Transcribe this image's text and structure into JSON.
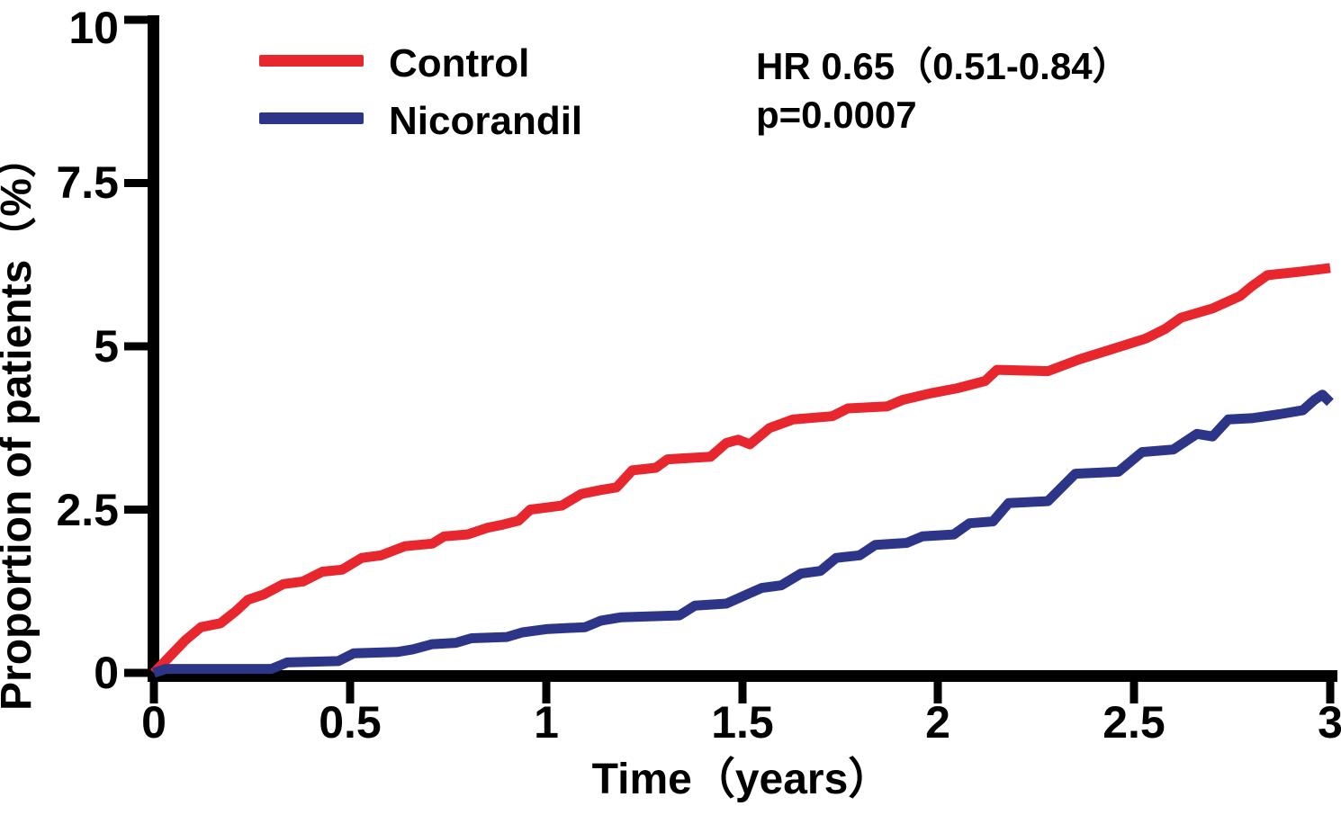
{
  "chart_data": {
    "type": "line",
    "subtype": "kaplan-meier-cumulative-incidence",
    "title": "",
    "xlabel": "Time（years）",
    "ylabel": "Proportion of patients（%）",
    "xlim": [
      0,
      3
    ],
    "ylim": [
      0,
      10
    ],
    "x_tick_labels": [
      "0",
      "0.5",
      "1",
      "1.5",
      "2",
      "2.5",
      "3"
    ],
    "y_tick_labels": [
      "0",
      "2.5",
      "5",
      "7.5",
      "10"
    ],
    "grid": false,
    "legend_position": "top-left-inside",
    "annotations": {
      "hazard_ratio": "HR 0.65（0.51-0.84）",
      "p_value": "p=0.0007"
    },
    "series": [
      {
        "name": "Control",
        "color": "#e7272d",
        "points": [
          [
            0.0,
            0.0
          ],
          [
            0.04,
            0.25
          ],
          [
            0.08,
            0.5
          ],
          [
            0.12,
            0.7
          ],
          [
            0.17,
            0.76
          ],
          [
            0.21,
            0.95
          ],
          [
            0.24,
            1.12
          ],
          [
            0.28,
            1.2
          ],
          [
            0.33,
            1.36
          ],
          [
            0.38,
            1.4
          ],
          [
            0.43,
            1.55
          ],
          [
            0.48,
            1.58
          ],
          [
            0.53,
            1.76
          ],
          [
            0.58,
            1.8
          ],
          [
            0.64,
            1.94
          ],
          [
            0.71,
            1.98
          ],
          [
            0.74,
            2.09
          ],
          [
            0.8,
            2.12
          ],
          [
            0.85,
            2.22
          ],
          [
            0.89,
            2.27
          ],
          [
            0.93,
            2.33
          ],
          [
            0.96,
            2.5
          ],
          [
            1.04,
            2.56
          ],
          [
            1.09,
            2.74
          ],
          [
            1.14,
            2.8
          ],
          [
            1.18,
            2.84
          ],
          [
            1.22,
            3.1
          ],
          [
            1.28,
            3.14
          ],
          [
            1.31,
            3.27
          ],
          [
            1.42,
            3.31
          ],
          [
            1.46,
            3.52
          ],
          [
            1.49,
            3.57
          ],
          [
            1.52,
            3.5
          ],
          [
            1.57,
            3.75
          ],
          [
            1.63,
            3.88
          ],
          [
            1.73,
            3.93
          ],
          [
            1.77,
            4.05
          ],
          [
            1.87,
            4.08
          ],
          [
            1.91,
            4.18
          ],
          [
            1.98,
            4.28
          ],
          [
            2.05,
            4.36
          ],
          [
            2.12,
            4.47
          ],
          [
            2.15,
            4.64
          ],
          [
            2.28,
            4.62
          ],
          [
            2.36,
            4.8
          ],
          [
            2.45,
            4.97
          ],
          [
            2.53,
            5.12
          ],
          [
            2.58,
            5.27
          ],
          [
            2.62,
            5.44
          ],
          [
            2.7,
            5.58
          ],
          [
            2.77,
            5.77
          ],
          [
            2.8,
            5.92
          ],
          [
            2.84,
            6.09
          ],
          [
            2.92,
            6.14
          ],
          [
            3.0,
            6.2
          ]
        ]
      },
      {
        "name": "Nicorandil",
        "color": "#2c3587",
        "points": [
          [
            0.0,
            0.0
          ],
          [
            0.03,
            0.06
          ],
          [
            0.3,
            0.06
          ],
          [
            0.34,
            0.16
          ],
          [
            0.47,
            0.18
          ],
          [
            0.51,
            0.3
          ],
          [
            0.62,
            0.32
          ],
          [
            0.66,
            0.36
          ],
          [
            0.71,
            0.44
          ],
          [
            0.77,
            0.46
          ],
          [
            0.81,
            0.53
          ],
          [
            0.9,
            0.55
          ],
          [
            0.94,
            0.62
          ],
          [
            1.0,
            0.67
          ],
          [
            1.1,
            0.7
          ],
          [
            1.14,
            0.8
          ],
          [
            1.19,
            0.85
          ],
          [
            1.34,
            0.88
          ],
          [
            1.38,
            1.03
          ],
          [
            1.46,
            1.06
          ],
          [
            1.52,
            1.22
          ],
          [
            1.55,
            1.3
          ],
          [
            1.6,
            1.34
          ],
          [
            1.65,
            1.52
          ],
          [
            1.7,
            1.56
          ],
          [
            1.74,
            1.76
          ],
          [
            1.8,
            1.8
          ],
          [
            1.84,
            1.96
          ],
          [
            1.92,
            1.99
          ],
          [
            1.96,
            2.09
          ],
          [
            2.04,
            2.12
          ],
          [
            2.08,
            2.29
          ],
          [
            2.14,
            2.32
          ],
          [
            2.18,
            2.6
          ],
          [
            2.28,
            2.63
          ],
          [
            2.35,
            3.05
          ],
          [
            2.46,
            3.08
          ],
          [
            2.52,
            3.38
          ],
          [
            2.6,
            3.42
          ],
          [
            2.66,
            3.66
          ],
          [
            2.7,
            3.62
          ],
          [
            2.74,
            3.88
          ],
          [
            2.8,
            3.9
          ],
          [
            2.87,
            3.96
          ],
          [
            2.93,
            4.02
          ],
          [
            2.96,
            4.18
          ],
          [
            2.98,
            4.26
          ],
          [
            3.0,
            4.14
          ]
        ]
      }
    ]
  }
}
